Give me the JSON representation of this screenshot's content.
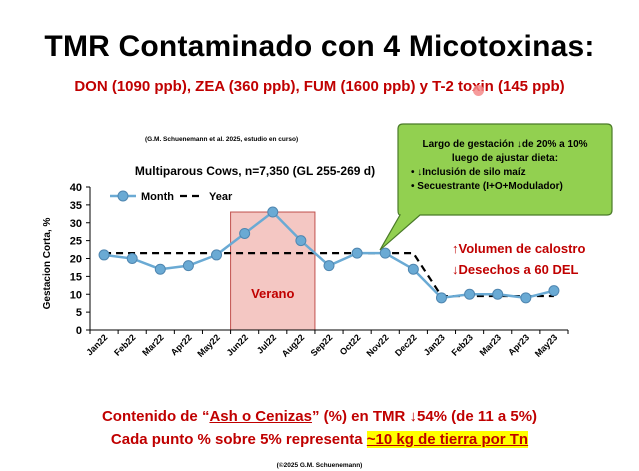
{
  "slide": {
    "title": "TMR Contaminado con 4 Micotoxinas:",
    "subtitle": "DON (1090 ppb), ZEA (360 ppb), FUM (1600 ppb) y T-2 toxin (145 ppb)",
    "citation": "(G.M. Schuenemann et al. 2025, estudio en curso)",
    "note": {
      "line1": "Largo de gestación ↓de 20% a 10%",
      "line2": "luego de ajustar dieta:",
      "bullet1": "↓Inclusión de silo maíz",
      "bullet2": "Secuestrante  (I+O+Modulador)"
    },
    "annotations": {
      "line1": "↑Volumen de calostro",
      "line2": "↓Desechos a 60 DEL"
    },
    "bottom": {
      "line1_pre": "Contenido de “",
      "line1_ul": "Ash o Cenizas",
      "line1_post": "” (%) en TMR ↓54% (de 11 a 5%)",
      "line2_pre": "Cada punto % sobre 5% representa ",
      "line2_hl": "~10 kg de tierra por Tn"
    },
    "copyright": "(©2025 G.M. Schuenemann)",
    "colors": {
      "title": "#000000",
      "red": "#c00000",
      "series": "#6aaad4",
      "note_bg": "#92d050",
      "summer_fill": "#f4c7c3",
      "highlight": "#ffff00"
    }
  },
  "chart_data": {
    "type": "line",
    "title": "Multiparous Cows, n=7,350 (GL 255-269 d)",
    "xlabel": "",
    "ylabel": "Gestacion Corta, %",
    "ylim": [
      0,
      40
    ],
    "yticks": [
      0,
      5,
      10,
      15,
      20,
      25,
      30,
      35,
      40
    ],
    "grid": false,
    "legend": "top-left",
    "categories": [
      "Jan22",
      "Feb22",
      "Mar22",
      "Apr22",
      "May22",
      "Jun22",
      "Jul22",
      "Aug22",
      "Sep22",
      "Oct22",
      "Nov22",
      "Dec22",
      "Jan23",
      "Feb23",
      "Mar23",
      "Apr23",
      "May23"
    ],
    "series": [
      {
        "name": "Month",
        "style": "line-marker",
        "values": [
          21,
          20,
          17,
          18,
          21,
          27,
          33,
          25,
          18,
          21.5,
          21.5,
          17,
          9,
          10,
          10,
          9,
          11
        ]
      },
      {
        "name": "Year",
        "style": "dashed",
        "values": [
          21.5,
          21.5,
          21.5,
          21.5,
          21.5,
          21.5,
          21.5,
          21.5,
          21.5,
          21.5,
          21.5,
          21.5,
          9.5,
          9.5,
          9.5,
          9.5,
          9.5
        ]
      }
    ],
    "shaded_region": {
      "label": "Verano",
      "from": "Jun22",
      "to": "Aug22"
    }
  }
}
